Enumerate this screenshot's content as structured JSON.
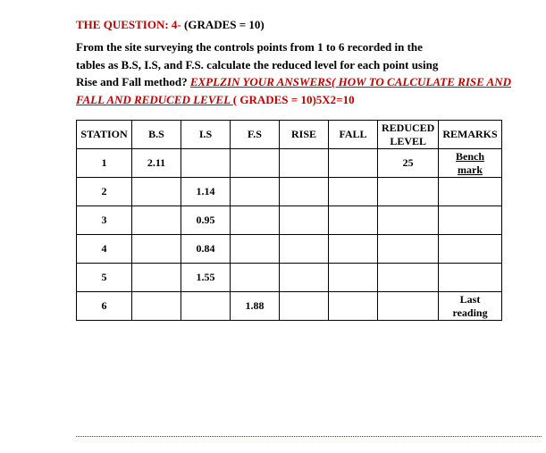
{
  "header": {
    "question_prefix": "THE QUESTION: 4-",
    "grades_label": " (GRADES = 10)"
  },
  "body": {
    "line1": "From the site surveying the controls points from 1 to 6 recorded in the",
    "line2": "tables as B.S, I.S, and F.S. calculate the reduced level for each point using",
    "line3_a": "Rise and Fall method? ",
    "line3_b": "EXPLZIN YOUR ANSWERS( HOW TO CALCULATE RISE AND",
    "line4_a": "FALL AND REDUCED LEVEL ",
    "line4_b": "  ( GRADES = 10)5X2=10"
  },
  "table": {
    "headers": {
      "station": "STATION",
      "bs": "B.S",
      "is": "I.S",
      "fs": "F.S",
      "rise": "RISE",
      "fall": "FALL",
      "rl": "REDUCED LEVEL",
      "remarks": "REMARKS"
    },
    "rows": [
      {
        "station": "1",
        "bs": "2.11",
        "is": "",
        "fs": "",
        "rise": "",
        "fall": "",
        "rl": "25",
        "remarks": "Bench mark",
        "remark_under": true
      },
      {
        "station": "2",
        "bs": "",
        "is": "1.14",
        "fs": "",
        "rise": "",
        "fall": "",
        "rl": "",
        "remarks": ""
      },
      {
        "station": "3",
        "bs": "",
        "is": "0.95",
        "fs": "",
        "rise": "",
        "fall": "",
        "rl": "",
        "remarks": ""
      },
      {
        "station": "4",
        "bs": "",
        "is": "0.84",
        "fs": "",
        "rise": "",
        "fall": "",
        "rl": "",
        "remarks": ""
      },
      {
        "station": "5",
        "bs": "",
        "is": "1.55",
        "fs": "",
        "rise": "",
        "fall": "",
        "rl": "",
        "remarks": ""
      },
      {
        "station": "6",
        "bs": "",
        "is": "",
        "fs": "1.88",
        "rise": "",
        "fall": "",
        "rl": "",
        "remarks": "Last reading"
      }
    ]
  },
  "colors": {
    "red": "#c00000",
    "text": "#000000",
    "background": "#ffffff"
  }
}
